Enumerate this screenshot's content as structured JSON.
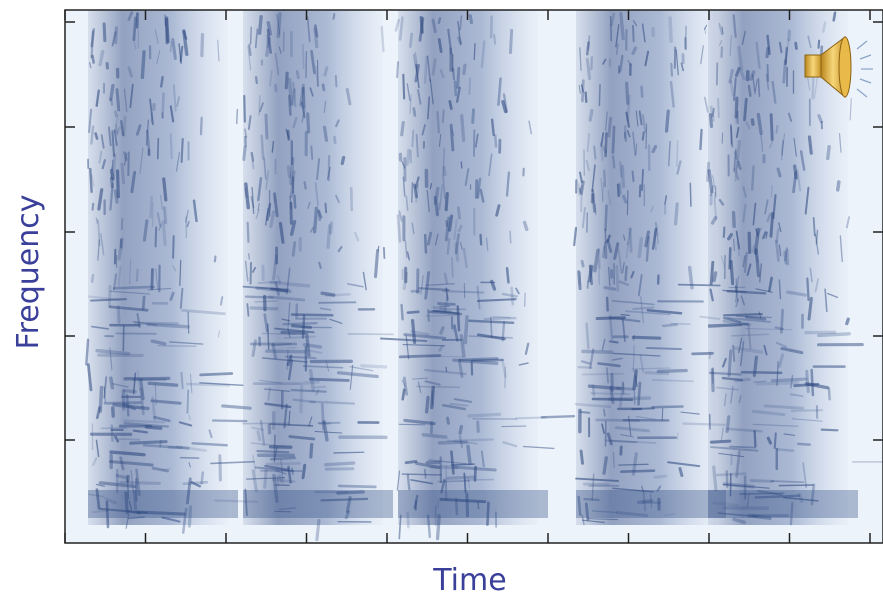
{
  "chart_data": {
    "type": "spectrogram",
    "x_label": "Time",
    "y_label": "Frequency"
  }
}
